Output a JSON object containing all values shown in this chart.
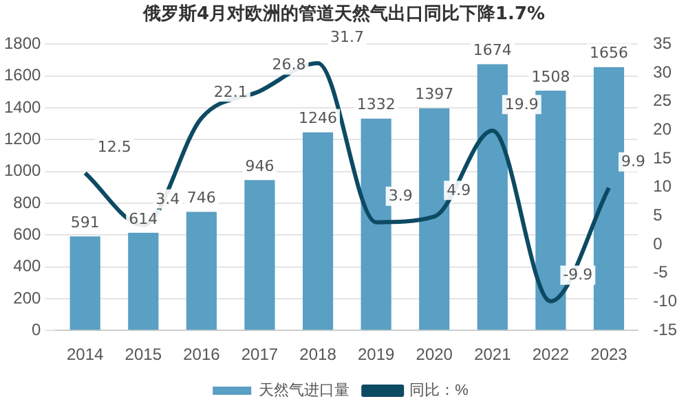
{
  "chart_data": {
    "type": "bar",
    "title": "俄罗斯4月对欧洲的管道天然气出口同比下降1.7%",
    "categories": [
      "2014",
      "2015",
      "2016",
      "2017",
      "2018",
      "2019",
      "2020",
      "2021",
      "2022",
      "2023"
    ],
    "series": [
      {
        "name": "天然气进口量",
        "color": "#5a9fc4",
        "values": [
          591,
          614,
          746,
          946,
          1246,
          1332,
          1397,
          1674,
          1508,
          1656
        ]
      },
      {
        "name": "同比：%",
        "type": "line",
        "axis": "y2",
        "color": "#0d4a63",
        "values": [
          12.5,
          3.4,
          22.1,
          26.8,
          31.7,
          3.9,
          4.9,
          19.9,
          -9.9,
          9.9
        ]
      }
    ],
    "ylim": [
      0,
      1800
    ],
    "yticks": [
      0,
      200,
      400,
      600,
      800,
      1000,
      1200,
      1400,
      1600,
      1800
    ],
    "y2lim": [
      -15,
      35
    ],
    "y2ticks": [
      -15,
      -10,
      -5,
      0,
      5,
      10,
      15,
      20,
      25,
      30,
      35
    ],
    "grid": "y",
    "legend": "bottom",
    "marker": "none",
    "data_labels": true
  }
}
